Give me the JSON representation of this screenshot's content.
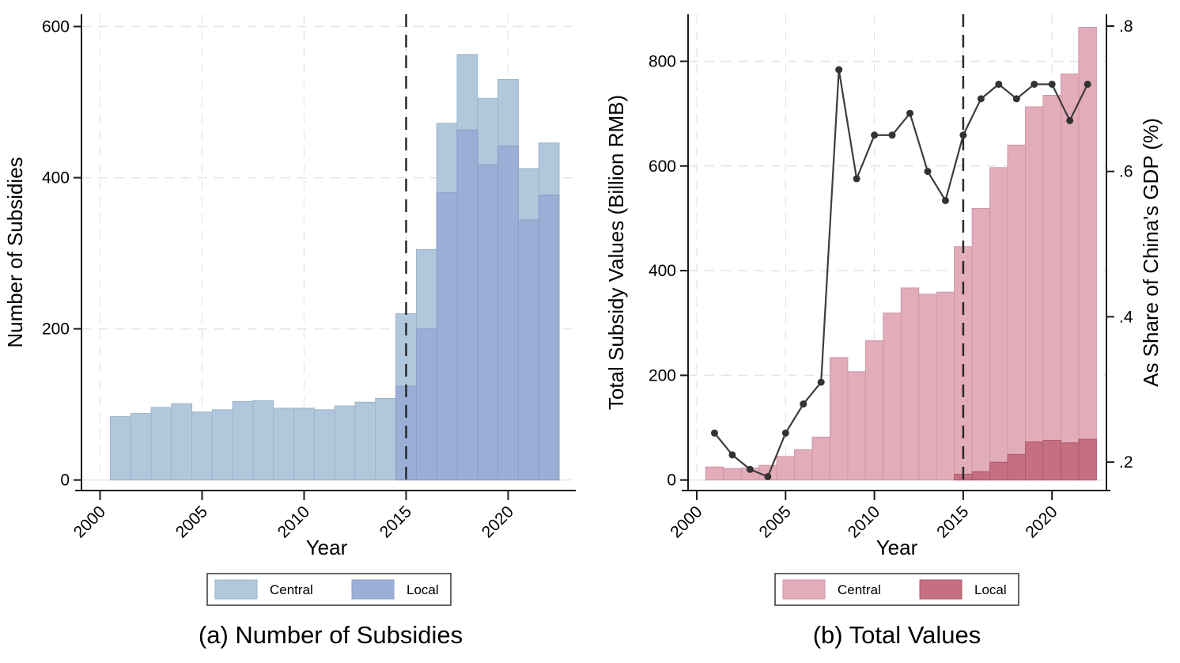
{
  "figure": {
    "background": "#ffffff"
  },
  "styles": {
    "grid_color": "#e4e4e4",
    "axis_color": "#1a1a1a",
    "ref_line_color": "#2a2a2a",
    "dot_color": "#333333",
    "base_line_color": "#dddddd",
    "legend_border_color": "#333333"
  },
  "chart_data": [
    {
      "panel": "a",
      "type": "bar",
      "title": "(a) Number of Subsidies",
      "xlabel": "Year",
      "ylabel": "Number of Subsidies",
      "x_ticks": [
        2000,
        2005,
        2010,
        2015,
        2020
      ],
      "y_ticks": [
        0,
        200,
        400,
        600
      ],
      "ylim": [
        0,
        600
      ],
      "grid": true,
      "legend_position": "bottom",
      "reference_line_year": 2015,
      "years": [
        2001,
        2002,
        2003,
        2004,
        2005,
        2006,
        2007,
        2008,
        2009,
        2010,
        2011,
        2012,
        2013,
        2014,
        2015,
        2016,
        2017,
        2018,
        2019,
        2020,
        2021,
        2022
      ],
      "series": [
        {
          "name": "Central",
          "color": "#b1c7dc",
          "border_color": "#9cb5cc",
          "values": [
            84,
            88,
            96,
            101,
            90,
            93,
            104,
            105,
            95,
            95,
            93,
            98,
            103,
            108,
            220,
            305,
            472,
            563,
            505,
            530,
            412,
            446
          ]
        },
        {
          "name": "Local",
          "color": "#9baed6",
          "border_color": "#8a9dc8",
          "values": [
            null,
            null,
            null,
            null,
            null,
            null,
            null,
            null,
            null,
            null,
            null,
            null,
            null,
            null,
            124,
            200,
            380,
            463,
            417,
            442,
            344,
            377
          ]
        }
      ]
    },
    {
      "panel": "b",
      "type": "bar+line",
      "title": "(b) Total Values",
      "xlabel": "Year",
      "ylabel_left": "Total Subsidy Values (Billion RMB)",
      "ylabel_right": "As Share of China's GDP (%)",
      "x_ticks": [
        2000,
        2005,
        2010,
        2015,
        2020
      ],
      "y_ticks_left": [
        0,
        200,
        400,
        600,
        800
      ],
      "y_ticks_right": [
        ".2",
        ".4",
        ".6",
        ".8"
      ],
      "ylim_left": [
        0,
        800
      ],
      "ylim_right": [
        0.2,
        0.8
      ],
      "grid": true,
      "legend_position": "bottom",
      "reference_line_year": 2015,
      "years": [
        2001,
        2002,
        2003,
        2004,
        2005,
        2006,
        2007,
        2008,
        2009,
        2010,
        2011,
        2012,
        2013,
        2014,
        2015,
        2016,
        2017,
        2018,
        2019,
        2020,
        2021,
        2022
      ],
      "series": [
        {
          "name": "Central",
          "color": "#e3acba",
          "border_color": "#d197a7",
          "values": [
            25,
            22,
            23,
            28,
            45,
            58,
            82,
            234,
            207,
            266,
            319,
            367,
            355,
            359,
            446,
            519,
            597,
            640,
            713,
            735,
            776,
            865
          ]
        },
        {
          "name": "Local",
          "color": "#c47080",
          "border_color": "#ad5a6d",
          "values": [
            null,
            null,
            null,
            null,
            null,
            null,
            null,
            null,
            null,
            null,
            null,
            null,
            null,
            null,
            11,
            16,
            34,
            49,
            73,
            76,
            71,
            78
          ]
        }
      ],
      "line_series": {
        "name": "As Share of China's GDP (%)",
        "color": "#3d3d3d",
        "values": [
          0.24,
          0.21,
          0.19,
          0.18,
          0.24,
          0.28,
          0.31,
          0.74,
          0.59,
          0.65,
          0.65,
          0.68,
          0.6,
          0.56,
          0.65,
          0.7,
          0.72,
          0.7,
          0.72,
          0.72,
          0.67,
          0.72
        ]
      }
    }
  ]
}
